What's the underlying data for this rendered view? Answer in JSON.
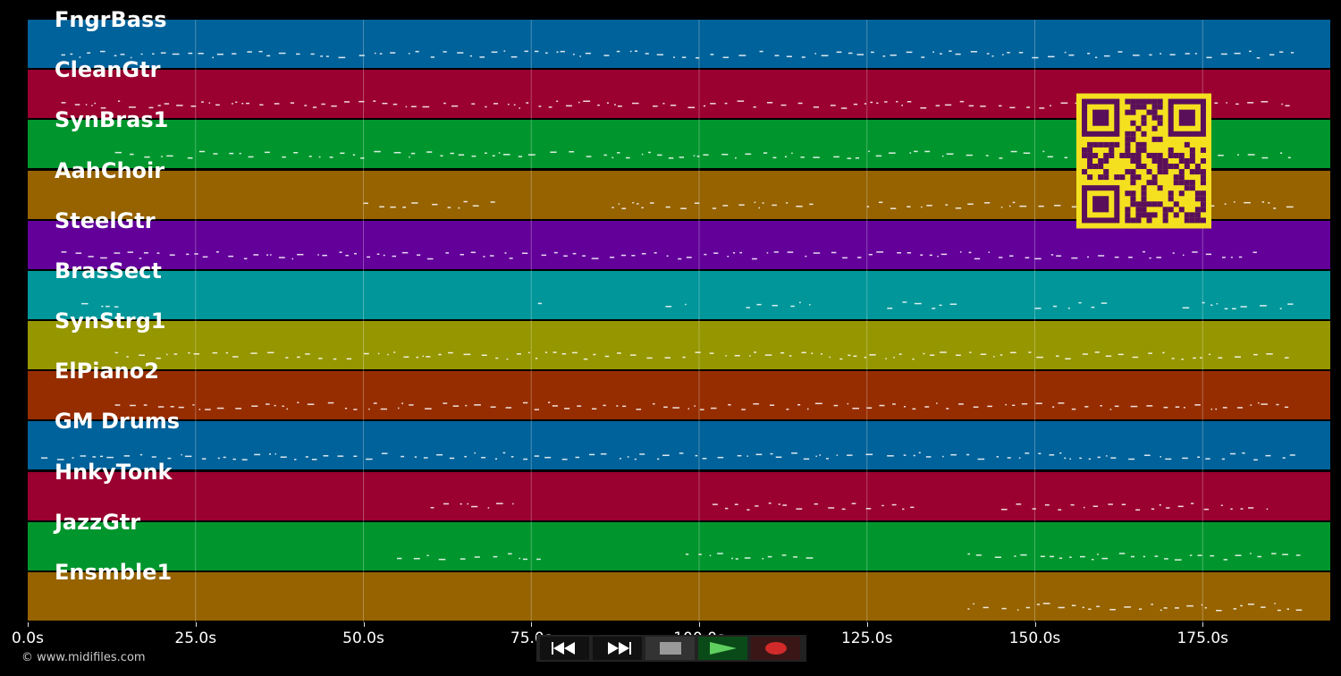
{
  "tracks": [
    {
      "name": "FngrBass",
      "color": "#00629a"
    },
    {
      "name": "CleanGtr",
      "color": "#9a0030"
    },
    {
      "name": "SynBras1",
      "color": "#00962d"
    },
    {
      "name": "AahChoir",
      "color": "#966300"
    },
    {
      "name": "SteelGtr",
      "color": "#63009a"
    },
    {
      "name": "BrasSect",
      "color": "#00969a"
    },
    {
      "name": "SynStrg1",
      "color": "#969600"
    },
    {
      "name": "ElPiano2",
      "color": "#962d00"
    },
    {
      "name": "GM Drums",
      "color": "#00629a"
    },
    {
      "name": "HnkyTonk",
      "color": "#9a0030"
    },
    {
      "name": "JazzGtr",
      "color": "#00962d"
    },
    {
      "name": "Ensmble1",
      "color": "#966300"
    }
  ],
  "timeline": {
    "ticks": [
      "0.0s",
      "25.0s",
      "50.0s",
      "75.0s",
      "100.0s",
      "125.0s",
      "150.0s",
      "175.0s"
    ],
    "tick_values": [
      0,
      25,
      50,
      75,
      100,
      125,
      150,
      175
    ],
    "max_seconds": 194
  },
  "copyright": "© www.midifiles.com",
  "transport": {
    "rewind": "rewind-icon",
    "fast_forward": "fast-forward-icon",
    "stop": "stop-icon",
    "play": "play-icon",
    "record": "record-icon"
  },
  "colors": {
    "background": "#000000",
    "qr_fg": "#5a0f5a",
    "qr_bg": "#f5e020"
  }
}
